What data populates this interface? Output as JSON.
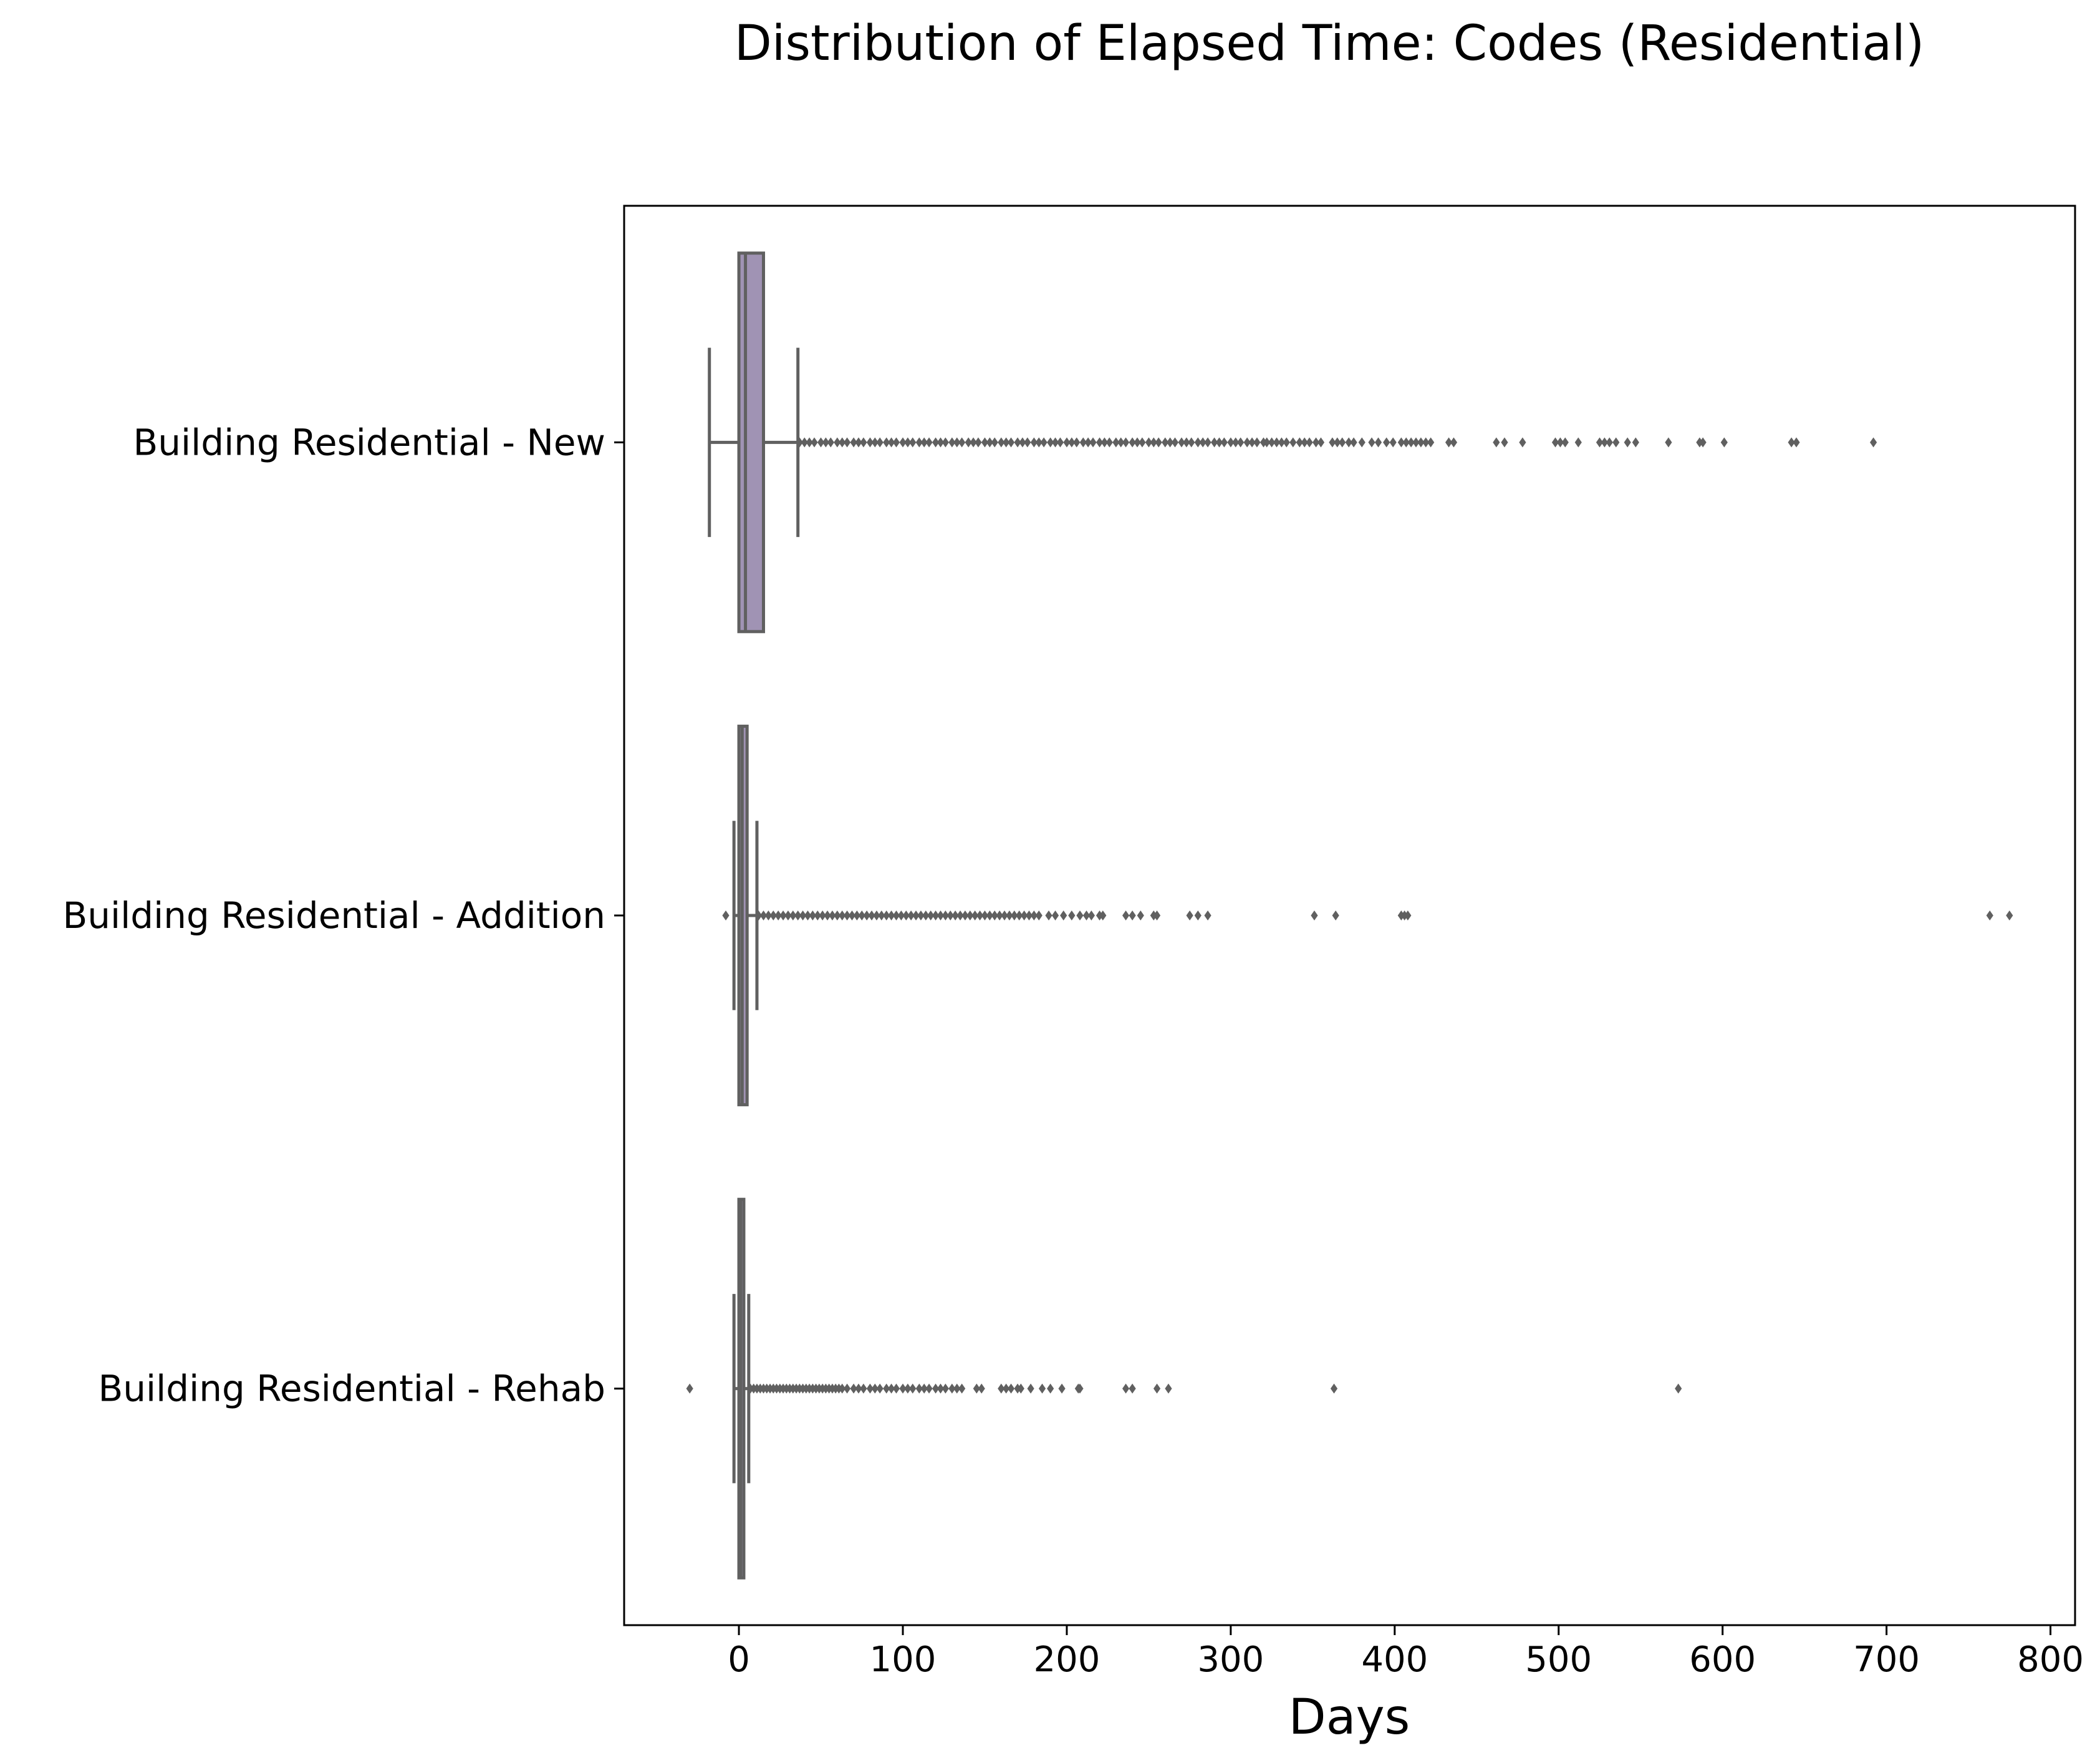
{
  "chart_data": {
    "type": "box",
    "orientation": "horizontal",
    "title": "Distribution of Elapsed Time: Codes (Residential)",
    "xlabel": "Days",
    "ylabel": "",
    "xlim": [
      -70,
      815
    ],
    "xticks": [
      0,
      100,
      200,
      300,
      400,
      500,
      600,
      700,
      800
    ],
    "grid": false,
    "colors": {
      "box_fill": "#a093b4",
      "line": "#606060",
      "outlier": "#606060"
    },
    "categories": [
      "Building Residential - New",
      "Building Residential - Addition",
      "Building Residential - Rehab"
    ],
    "boxes": [
      {
        "category": "Building Residential - New",
        "whisker_low": -18,
        "q1": 0,
        "median": 4,
        "q3": 15,
        "whisker_high": 36,
        "outliers": [
          37,
          40,
          43,
          46,
          50,
          53,
          56,
          60,
          63,
          66,
          70,
          73,
          76,
          80,
          83,
          86,
          90,
          93,
          96,
          100,
          103,
          106,
          110,
          113,
          116,
          120,
          123,
          126,
          130,
          133,
          136,
          140,
          143,
          146,
          150,
          153,
          156,
          160,
          163,
          166,
          170,
          173,
          176,
          180,
          183,
          186,
          190,
          193,
          196,
          200,
          203,
          206,
          210,
          213,
          216,
          220,
          223,
          226,
          230,
          233,
          236,
          240,
          243,
          246,
          250,
          253,
          256,
          260,
          263,
          266,
          270,
          273,
          276,
          280,
          283,
          286,
          290,
          293,
          296,
          300,
          303,
          306,
          310,
          313,
          316,
          320,
          322,
          325,
          328,
          331,
          334,
          338,
          342,
          345,
          348,
          352,
          355,
          362,
          365,
          368,
          372,
          375,
          380,
          386,
          390,
          395,
          399,
          404,
          407,
          410,
          413,
          416,
          419,
          422,
          433,
          436,
          462,
          467,
          478,
          498,
          501,
          504,
          512,
          525,
          528,
          531,
          535,
          542,
          547,
          567,
          586,
          588,
          601,
          642,
          645,
          692
        ]
      },
      {
        "category": "Building Residential - Addition",
        "whisker_low": -3,
        "q1": 0,
        "median": 2,
        "q3": 5,
        "whisker_high": 11,
        "outliers": [
          -8,
          12,
          15,
          18,
          21,
          24,
          27,
          30,
          33,
          36,
          39,
          42,
          45,
          48,
          51,
          54,
          57,
          60,
          63,
          66,
          69,
          72,
          75,
          78,
          81,
          84,
          87,
          90,
          93,
          96,
          99,
          102,
          105,
          108,
          111,
          114,
          117,
          120,
          123,
          126,
          129,
          132,
          135,
          138,
          141,
          144,
          147,
          150,
          153,
          156,
          159,
          162,
          165,
          168,
          171,
          174,
          177,
          180,
          183,
          189,
          193,
          198,
          203,
          208,
          212,
          215,
          220,
          222,
          236,
          240,
          245,
          253,
          255,
          275,
          280,
          286,
          351,
          364,
          404,
          406,
          408,
          763,
          775
        ]
      },
      {
        "category": "Building Residential - Rehab",
        "whisker_low": -3,
        "q1": 0,
        "median": 1,
        "q3": 3,
        "whisker_high": 6,
        "outliers": [
          -30,
          7,
          9,
          11,
          13,
          15,
          17,
          19,
          21,
          23,
          25,
          27,
          29,
          31,
          33,
          35,
          37,
          39,
          41,
          43,
          45,
          47,
          49,
          51,
          53,
          55,
          57,
          59,
          61,
          63,
          66,
          70,
          73,
          76,
          80,
          83,
          86,
          90,
          93,
          96,
          100,
          103,
          106,
          110,
          113,
          116,
          120,
          123,
          126,
          130,
          133,
          136,
          145,
          148,
          160,
          163,
          166,
          170,
          172,
          178,
          185,
          190,
          197,
          207,
          208,
          236,
          240,
          255,
          262,
          363,
          573
        ]
      }
    ]
  }
}
